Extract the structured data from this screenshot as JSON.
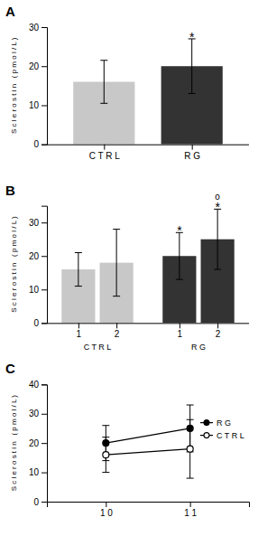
{
  "chart_data": [
    {
      "type": "bar",
      "title": "A",
      "ylabel": "S c l e r o s t i n   ( p m o l / L )",
      "categories": [
        "C T R L",
        "R G"
      ],
      "values": [
        16.0,
        20.0
      ],
      "errors": [
        5.5,
        7.0
      ],
      "colors": [
        "#c8c8c8",
        "#333333"
      ],
      "ylim": [
        0,
        30
      ],
      "yticks": [
        0,
        10,
        20,
        30
      ],
      "significance": [
        null,
        [
          "*"
        ]
      ]
    },
    {
      "type": "bar",
      "title": "B",
      "ylabel": "S c l e r o s t i n   ( p m o l / L )",
      "categories": [
        "1",
        "2",
        "1",
        "2"
      ],
      "groups": [
        "C T R L",
        "R G"
      ],
      "values": [
        16.0,
        18.0,
        20.0,
        25.0
      ],
      "errors": [
        5.0,
        10.0,
        7.0,
        9.0
      ],
      "colors": [
        "#c8c8c8",
        "#c8c8c8",
        "#333333",
        "#333333"
      ],
      "ylim": [
        0,
        35
      ],
      "yticks": [
        0,
        10,
        20,
        30
      ],
      "significance": [
        null,
        null,
        [
          "*"
        ],
        [
          "o",
          "*"
        ]
      ]
    },
    {
      "type": "line",
      "title": "C",
      "ylabel": "S c l e r o s t i n   ( p m o l / L )",
      "x": [
        10,
        11
      ],
      "xlim": [
        9.3,
        11.7
      ],
      "xticks": [
        {
          "value": 10,
          "label": "1 0"
        },
        {
          "value": 11,
          "label": "1 1"
        }
      ],
      "ylim": [
        0,
        40
      ],
      "yticks": [
        0,
        10,
        20,
        30,
        40
      ],
      "legend": "right",
      "series": [
        {
          "name": "R G",
          "color": "#000000",
          "marker": "filled-circle",
          "values": [
            20.0,
            25.0
          ],
          "errors": [
            6.0,
            8.0
          ]
        },
        {
          "name": "C T R L",
          "color": "#000000",
          "marker": "open-circle",
          "values": [
            16.0,
            18.0
          ],
          "errors": [
            6.0,
            10.0
          ]
        }
      ]
    }
  ]
}
